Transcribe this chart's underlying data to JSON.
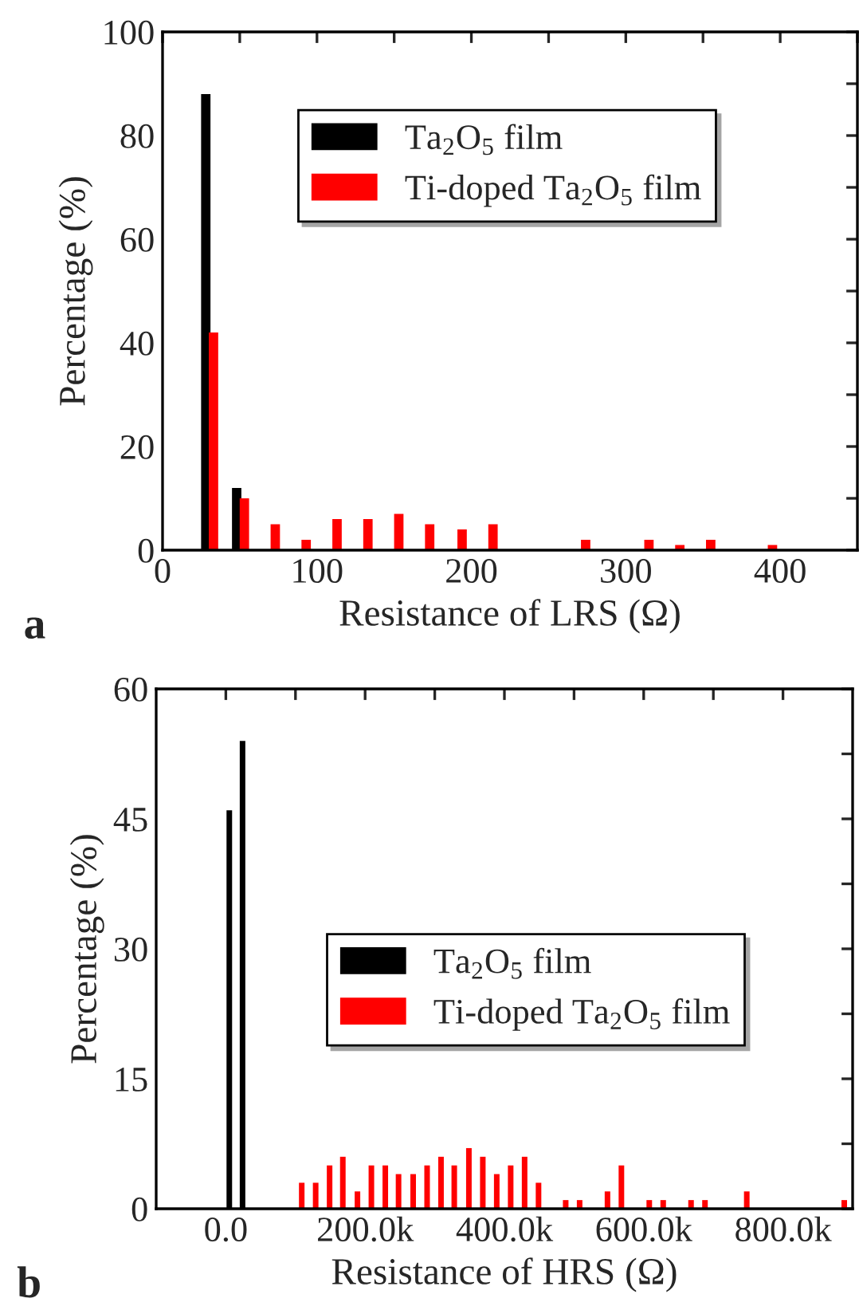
{
  "chart_data": [
    {
      "type": "bar",
      "xlabel": "Resistance of LRS (Ω)",
      "ylabel": "Percentage (%)",
      "annotations": [
        "a"
      ],
      "xlim": [
        0,
        450
      ],
      "xticks": [
        0,
        {
          "value": 50,
          "label": null
        },
        100,
        {
          "value": 150,
          "label": null
        },
        200,
        {
          "value": 250,
          "label": null
        },
        300,
        {
          "value": 350,
          "label": null
        },
        400,
        {
          "value": 450,
          "label": null
        }
      ],
      "ylim": [
        0,
        100
      ],
      "yticks": [
        0,
        {
          "value": 10,
          "label": null
        },
        20,
        {
          "value": 30,
          "label": null
        },
        40,
        {
          "value": 50,
          "label": null
        },
        60,
        {
          "value": 70,
          "label": null
        },
        80,
        {
          "value": 90,
          "label": null
        },
        100
      ],
      "legend": "top",
      "grid": false,
      "series": [
        {
          "name": "Ta$_{2}$O$_{5}$ film",
          "color": "#000000",
          "x": [
            28,
            48
          ],
          "values": [
            88,
            12
          ]
        },
        {
          "name": "Ti-doped Ta$_{2}$O$_{5}$ film",
          "color": "#ff0000",
          "x": [
            33,
            53,
            73,
            93,
            113,
            133,
            153,
            173,
            194,
            214,
            274,
            315,
            335,
            355,
            395
          ],
          "values": [
            42,
            10,
            5,
            2,
            6,
            6,
            7,
            5,
            4,
            5,
            2,
            2,
            1,
            2,
            1
          ]
        }
      ]
    },
    {
      "type": "bar",
      "xlabel": "Resistance of HRS (Ω)",
      "ylabel": "Percentage (%)",
      "annotations": [
        "b"
      ],
      "xlim": [
        -100000,
        900000
      ],
      "xticks": [
        {
          "value": 0,
          "label": "0.0"
        },
        {
          "value": 100000,
          "label": null
        },
        {
          "value": 200000,
          "label": "200.0k"
        },
        {
          "value": 300000,
          "label": null
        },
        {
          "value": 400000,
          "label": "400.0k"
        },
        {
          "value": 500000,
          "label": null
        },
        {
          "value": 600000,
          "label": "600.0k"
        },
        {
          "value": 700000,
          "label": null
        },
        {
          "value": 800000,
          "label": "800.0k"
        }
      ],
      "ylim": [
        0,
        60
      ],
      "yticks": [
        0,
        {
          "value": 7.5,
          "label": null
        },
        15,
        {
          "value": 22.5,
          "label": null
        },
        30,
        {
          "value": 37.5,
          "label": null
        },
        45,
        {
          "value": 52.5,
          "label": null
        },
        60
      ],
      "legend": "center",
      "grid": false,
      "series": [
        {
          "name": "Ta$_{2}$O$_{5}$ film",
          "color": "#000000",
          "x": [
            5000,
            24000
          ],
          "values": [
            46,
            54
          ]
        },
        {
          "name": "Ti-doped Ta$_{2}$O$_{5}$ film",
          "color": "#ff0000",
          "x": [
            109000,
            129000,
            149000,
            168000,
            189000,
            209000,
            229000,
            248000,
            269000,
            289000,
            309000,
            328000,
            349000,
            369000,
            389000,
            409000,
            429000,
            449000,
            488000,
            508000,
            548000,
            568000,
            608000,
            628000,
            668000,
            688000,
            748000,
            888000
          ],
          "values": [
            3,
            3,
            5,
            6,
            2,
            5,
            5,
            4,
            4,
            5,
            6,
            5,
            7,
            6,
            4,
            5,
            6,
            3,
            1,
            1,
            2,
            5,
            1,
            1,
            1,
            1,
            2,
            1
          ]
        }
      ]
    }
  ]
}
